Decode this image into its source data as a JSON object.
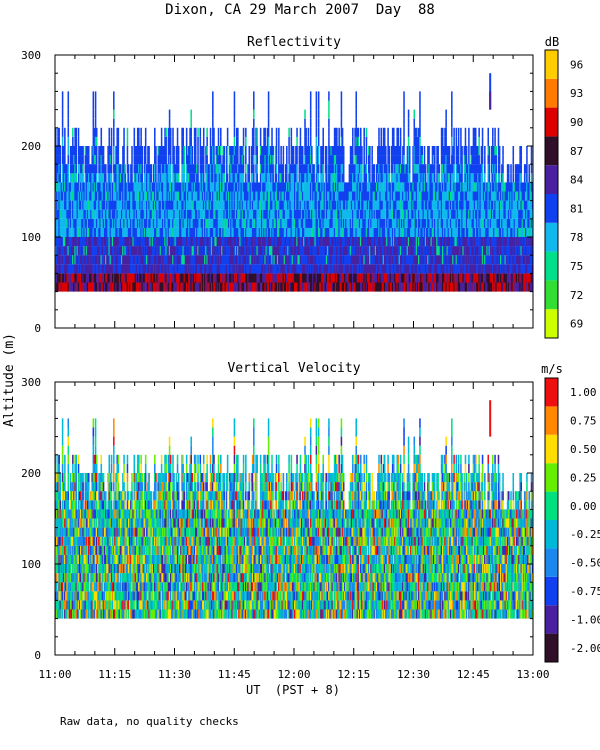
{
  "page": {
    "title": "Dixon, CA 29 March 2007  Day  88",
    "y_axis_title": "Altitude (m)",
    "x_axis_title": "UT  (PST + 8)",
    "footnote": "Raw data, no quality checks"
  },
  "chart_data": [
    {
      "type": "heatmap",
      "title": "Reflectivity",
      "xlabel": "UT  (PST + 8)",
      "ylabel": "Altitude (m)",
      "xlim": [
        "11:00",
        "13:00"
      ],
      "ylim": [
        0,
        300
      ],
      "x_ticks": [
        "11:00",
        "11:15",
        "11:30",
        "11:45",
        "12:00",
        "12:15",
        "12:30",
        "12:45",
        "13:00"
      ],
      "y_ticks": [
        0,
        100,
        200,
        300
      ],
      "colorbar": {
        "unit": "dB",
        "labels": [
          "69",
          "72",
          "75",
          "78",
          "81",
          "84",
          "87",
          "90",
          "93",
          "96"
        ],
        "colors": [
          "#ccff00",
          "#33dd33",
          "#00e08a",
          "#10b8ee",
          "#1040f0",
          "#4820a0",
          "#301028",
          "#dd0000",
          "#ff7a00",
          "#ffcc00"
        ]
      },
      "data_summary": {
        "echo_base_m": 40,
        "typical_top_m": [
          180,
          220
        ],
        "max_top_m": 260,
        "isolated_echo": {
          "time": "12:49",
          "altitude_m": [
            240,
            280
          ]
        }
      }
    },
    {
      "type": "heatmap",
      "title": "Vertical Velocity",
      "xlabel": "UT  (PST + 8)",
      "ylabel": "Altitude (m)",
      "xlim": [
        "11:00",
        "13:00"
      ],
      "ylim": [
        0,
        300
      ],
      "x_ticks": [
        "11:00",
        "11:15",
        "11:30",
        "11:45",
        "12:00",
        "12:15",
        "12:30",
        "12:45",
        "13:00"
      ],
      "y_ticks": [
        0,
        100,
        200,
        300
      ],
      "colorbar": {
        "unit": "m/s",
        "labels": [
          "-2.00",
          "-1.00",
          "-0.75",
          "-0.50",
          "-0.25",
          "0.00",
          "0.25",
          "0.50",
          "0.75",
          "1.00"
        ],
        "colors": [
          "#301028",
          "#4820a0",
          "#1040f0",
          "#1a88ee",
          "#00b8d8",
          "#00e080",
          "#66ee00",
          "#ffdd00",
          "#ff8800",
          "#ee1010"
        ]
      },
      "data_summary": {
        "echo_base_m": 40,
        "typical_top_m": [
          180,
          220
        ],
        "max_top_m": 260,
        "isolated_echo": {
          "time": "12:49",
          "altitude_m": [
            240,
            280
          ]
        }
      }
    }
  ]
}
